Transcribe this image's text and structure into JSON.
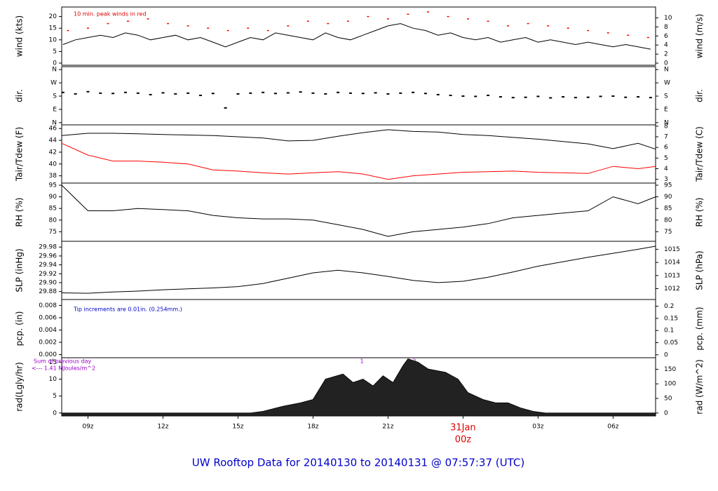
{
  "title": "UW Rooftop Data for 20140130  to  20140131 @ 07:57:37  (UTC)",
  "chart_data": [
    {
      "type": "line",
      "ylabel": "wind (kts)",
      "y2label": "wind (m/s)",
      "xlim": [
        7.95,
        31.7
      ],
      "ylim": [
        -0.9,
        24.1
      ],
      "yticks": [
        0,
        5,
        10,
        15,
        20
      ],
      "y2lim": [
        -0.46,
        12.4
      ],
      "y2ticks": [
        0,
        2,
        4,
        6,
        8,
        10
      ],
      "annotations": [
        {
          "text": "10 min. peak winds in red",
          "color": "#dd0000"
        }
      ],
      "series": [
        {
          "color": "#000000",
          "marker": "line",
          "x": [
            8,
            8.5,
            9,
            9.5,
            10,
            10.5,
            11,
            11.5,
            12,
            12.5,
            13,
            13.5,
            14,
            14.5,
            15,
            15.5,
            16,
            16.5,
            17,
            17.5,
            18,
            18.5,
            19,
            19.5,
            20,
            20.5,
            21,
            21.5,
            22,
            22.5,
            23,
            23.5,
            24,
            24.5,
            25,
            25.5,
            26,
            26.5,
            27,
            27.5,
            28,
            28.5,
            29,
            29.5,
            30,
            30.5,
            31,
            31.5
          ],
          "values": [
            8,
            10,
            11,
            12,
            11,
            13,
            12,
            10,
            11,
            12,
            10,
            11,
            9,
            7,
            9,
            11,
            10,
            13,
            12,
            11,
            10,
            13,
            11,
            10,
            12,
            14,
            16,
            17,
            15,
            14,
            12,
            13,
            11,
            10,
            11,
            9,
            10,
            11,
            9,
            10,
            9,
            8,
            9,
            8,
            7,
            8,
            7,
            6
          ]
        },
        {
          "color": "#ff0000",
          "marker": "dot",
          "x": [
            8.2,
            9,
            9.8,
            10.6,
            11.4,
            12.2,
            13,
            13.8,
            14.6,
            15.4,
            16.2,
            17,
            17.8,
            18.6,
            19.4,
            20.2,
            21,
            21.8,
            22.6,
            23.4,
            24.2,
            25,
            25.8,
            26.6,
            27.4,
            28.2,
            29,
            29.8,
            30.6,
            31.4
          ],
          "values": [
            14,
            15,
            17,
            18,
            19,
            17,
            16,
            15,
            14,
            15,
            14,
            16,
            18,
            17,
            18,
            20,
            19,
            21,
            22,
            20,
            19,
            18,
            16,
            17,
            16,
            15,
            14,
            13,
            12,
            11
          ]
        }
      ]
    },
    {
      "type": "scatter",
      "ylabel": "dir.",
      "y2label": "dir.",
      "xlim": [
        7.95,
        31.7
      ],
      "ylim": [
        -15,
        380
      ],
      "yticks": [
        {
          "value": 0,
          "label": "N"
        },
        {
          "value": 90,
          "label": "E"
        },
        {
          "value": 180,
          "label": "S"
        },
        {
          "value": 270,
          "label": "W"
        },
        {
          "value": 360,
          "label": "N"
        }
      ],
      "series": [
        {
          "color": "#000000",
          "x": [
            8,
            8.5,
            9,
            9.5,
            10,
            10.5,
            11,
            11.5,
            12,
            12.5,
            13,
            13.5,
            14,
            14.5,
            15,
            15.5,
            16,
            16.5,
            17,
            17.5,
            18,
            18.5,
            19,
            19.5,
            20,
            20.5,
            21,
            21.5,
            22,
            22.5,
            23,
            23.5,
            24,
            24.5,
            25,
            25.5,
            26,
            26.5,
            27,
            27.5,
            28,
            28.5,
            29,
            29.5,
            30,
            30.5,
            31,
            31.5
          ],
          "values": [
            205,
            195,
            210,
            200,
            198,
            205,
            200,
            190,
            202,
            195,
            200,
            185,
            198,
            100,
            195,
            200,
            205,
            198,
            202,
            208,
            200,
            195,
            205,
            200,
            198,
            202,
            195,
            200,
            205,
            198,
            190,
            185,
            180,
            178,
            185,
            175,
            170,
            172,
            178,
            168,
            175,
            170,
            172,
            178,
            180,
            172,
            175,
            170
          ]
        }
      ]
    },
    {
      "type": "line",
      "ylabel": "Tair/Tdew (F)",
      "y2label": "Tair/Tdew (C)",
      "xlim": [
        7.95,
        31.7
      ],
      "ylim": [
        36.77,
        46.62
      ],
      "yticks": [
        38,
        40,
        42,
        44,
        46
      ],
      "y2lim": [
        2.65,
        8.12
      ],
      "y2ticks": [
        3,
        4,
        5,
        6,
        7,
        8
      ],
      "series": [
        {
          "color": "#000000",
          "marker": "line",
          "x": [
            7.95,
            9,
            10,
            11,
            12,
            13,
            14,
            15,
            16,
            17,
            18,
            19,
            20,
            21,
            22,
            23,
            24,
            25,
            26,
            27,
            28,
            29,
            30,
            31,
            31.7
          ],
          "values": [
            44.8,
            45.2,
            45.2,
            45.1,
            45.0,
            44.9,
            44.8,
            44.6,
            44.4,
            43.9,
            44.0,
            44.7,
            45.3,
            45.8,
            45.5,
            45.4,
            45.0,
            44.8,
            44.5,
            44.2,
            43.8,
            43.4,
            42.6,
            43.5,
            42.5
          ]
        },
        {
          "color": "#ff0000",
          "marker": "line",
          "x": [
            7.95,
            9,
            10,
            11,
            12,
            13,
            14,
            15,
            16,
            17,
            18,
            19,
            20,
            21,
            22,
            23,
            24,
            25,
            26,
            27,
            28,
            29,
            30,
            31,
            31.7
          ],
          "values": [
            43.5,
            41.5,
            40.5,
            40.5,
            40.3,
            40.0,
            39.0,
            38.8,
            38.5,
            38.3,
            38.5,
            38.7,
            38.3,
            37.4,
            38.0,
            38.3,
            38.6,
            38.7,
            38.8,
            38.6,
            38.5,
            38.4,
            39.6,
            39.2,
            39.6
          ]
        }
      ]
    },
    {
      "type": "line",
      "ylabel": "RH (%)",
      "y2label": "RH (%)",
      "xlim": [
        7.95,
        31.7
      ],
      "ylim": [
        70.9,
        95.9
      ],
      "yticks": [
        75,
        80,
        85,
        90,
        95
      ],
      "series": [
        {
          "color": "#000000",
          "marker": "line",
          "x": [
            7.95,
            9,
            10,
            11,
            12,
            13,
            14,
            15,
            16,
            17,
            18,
            19,
            20,
            21,
            22,
            23,
            24,
            25,
            26,
            27,
            28,
            29,
            30,
            31,
            31.7
          ],
          "values": [
            95,
            84,
            84,
            85,
            84.5,
            84,
            82,
            81,
            80.5,
            80.5,
            80,
            78,
            76,
            73,
            75,
            76,
            77,
            78.5,
            81,
            82,
            83,
            84,
            90,
            87,
            90
          ]
        }
      ]
    },
    {
      "type": "line",
      "ylabel": "SLP (inHg)",
      "y2label": "SLP (hPa)",
      "xlim": [
        7.95,
        31.7
      ],
      "ylim": [
        29.862,
        29.993
      ],
      "yticks": [
        29.88,
        {
          "value": 29.9,
          "label": "29.90"
        },
        29.92,
        29.94,
        29.96,
        29.98
      ],
      "y2lim": [
        1011.17,
        1015.61
      ],
      "y2ticks": [
        1012,
        1013,
        1014,
        1015
      ],
      "series": [
        {
          "color": "#000000",
          "marker": "line",
          "x": [
            7.95,
            9,
            10,
            11,
            12,
            13,
            14,
            15,
            16,
            17,
            18,
            19,
            20,
            21,
            22,
            23,
            24,
            25,
            26,
            27,
            28,
            29,
            30,
            31,
            31.7
          ],
          "values": [
            29.877,
            29.876,
            29.879,
            29.881,
            29.884,
            29.886,
            29.888,
            29.891,
            29.898,
            29.91,
            29.922,
            29.928,
            29.922,
            29.914,
            29.905,
            29.9,
            29.903,
            29.912,
            29.924,
            29.937,
            29.947,
            29.957,
            29.966,
            29.975,
            29.982
          ]
        }
      ]
    },
    {
      "type": "line",
      "ylabel": "pcp. (in)",
      "y2label": "pcp. (mm)",
      "xlim": [
        7.95,
        31.7
      ],
      "ylim": [
        -0.0005,
        0.00896
      ],
      "yticks": [
        {
          "value": 0,
          "label": "0.000"
        },
        0.002,
        0.004,
        0.006,
        0.008
      ],
      "y2lim": [
        -0.0121,
        0.2276
      ],
      "y2ticks": [
        0,
        0.05,
        0.1,
        0.15,
        0.2
      ],
      "annotations": [
        {
          "text": "Tip increments are 0.01in. (0.254mm.)",
          "color": "#0000cc"
        }
      ],
      "series": []
    },
    {
      "type": "area",
      "ylabel": "rad(Lgly/hr)",
      "y2label": "rad (W/m^2)",
      "xlim": [
        7.95,
        31.7
      ],
      "ylim": [
        -0.87,
        16.3
      ],
      "yticks": [
        0,
        5,
        10,
        15
      ],
      "y2lim": [
        -10.1,
        189.6
      ],
      "y2ticks": [
        0,
        50,
        100,
        150
      ],
      "xticks": [
        {
          "value": 9,
          "label": "09z"
        },
        {
          "value": 12,
          "label": "12z"
        },
        {
          "value": 15,
          "label": "15z"
        },
        {
          "value": 18,
          "label": "18z"
        },
        {
          "value": 21,
          "label": "21z"
        },
        {
          "value": 24,
          "label": "00z"
        },
        {
          "value": 27,
          "label": "03z"
        },
        {
          "value": 30,
          "label": "06z"
        }
      ],
      "x_date": {
        "value": 24,
        "label": "31Jan",
        "color": "#e00000"
      },
      "annotations": [
        {
          "text": "Sum of previous day",
          "color": "#9900cc"
        },
        {
          "text": "<--- 1.41 MJoules/m^2",
          "color": "#9900cc"
        },
        {
          "text": "1",
          "color": "#9900cc"
        },
        {
          "text": "2",
          "color": "#9900cc"
        }
      ],
      "series": [
        {
          "color": "#222222",
          "x": [
            7.95,
            15.5,
            16,
            16.8,
            17.5,
            18,
            18.5,
            19.2,
            19.6,
            20,
            20.4,
            20.8,
            21.2,
            21.6,
            21.8,
            22.2,
            22.6,
            23.3,
            23.8,
            24.2,
            24.8,
            25.3,
            25.8,
            26.3,
            26.8,
            27.3,
            31.7
          ],
          "values": [
            0,
            0,
            0.5,
            2,
            3,
            4,
            10,
            11.5,
            9,
            10,
            8,
            11,
            9,
            14,
            16,
            15,
            13,
            12,
            10,
            6,
            4,
            3,
            3,
            1.5,
            0.5,
            0,
            0
          ]
        }
      ]
    }
  ]
}
